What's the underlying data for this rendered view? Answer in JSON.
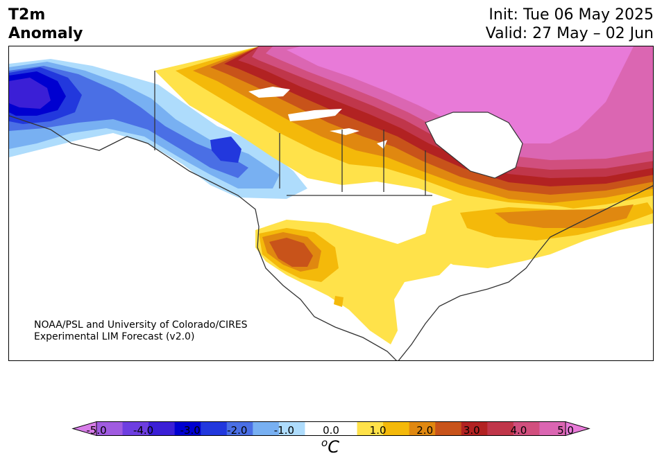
{
  "title": {
    "left_line1": "T2m",
    "left_line2": "Anomaly",
    "init": "Init: Tue 06 May 2025",
    "valid": "Valid: 27 May – 02 Jun"
  },
  "map": {
    "region": "North America",
    "variable": "2m temperature anomaly",
    "credit_line1": "NOAA/PSL and University of Colorado/CIRES",
    "credit_line2": "Experimental LIM Forecast (v2.0)"
  },
  "colorbar": {
    "unit_symbol": "C",
    "unit_prefix": "o",
    "tick_labels": [
      "-5.0",
      "-4.0",
      "-3.0",
      "-2.0",
      "-1.0",
      "0.0",
      "1.0",
      "2.0",
      "3.0",
      "4.0",
      "5.0"
    ],
    "colors": [
      "#a05be0",
      "#6e3ee0",
      "#3b1fd6",
      "#0000d0",
      "#2238dd",
      "#4a6fe5",
      "#78b0f2",
      "#aedcfc",
      "#ffffff",
      "#ffffff",
      "#ffe24a",
      "#f4b90a",
      "#e08810",
      "#c8531a",
      "#b22222",
      "#c0364a",
      "#d14f7e",
      "#db66b2"
    ],
    "extend_low_color": "#d77ce8",
    "extend_high_color": "#e87ad8"
  }
}
